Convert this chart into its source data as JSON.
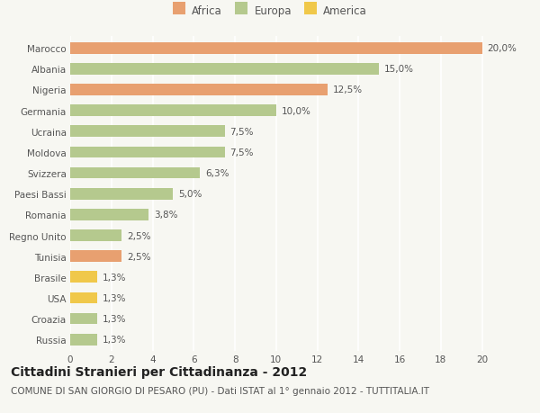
{
  "categories": [
    "Russia",
    "Croazia",
    "USA",
    "Brasile",
    "Tunisia",
    "Regno Unito",
    "Romania",
    "Paesi Bassi",
    "Svizzera",
    "Moldova",
    "Ucraina",
    "Germania",
    "Nigeria",
    "Albania",
    "Marocco"
  ],
  "values": [
    1.3,
    1.3,
    1.3,
    1.3,
    2.5,
    2.5,
    3.8,
    5.0,
    6.3,
    7.5,
    7.5,
    10.0,
    12.5,
    15.0,
    20.0
  ],
  "labels": [
    "1,3%",
    "1,3%",
    "1,3%",
    "1,3%",
    "2,5%",
    "2,5%",
    "3,8%",
    "5,0%",
    "6,3%",
    "7,5%",
    "7,5%",
    "10,0%",
    "12,5%",
    "15,0%",
    "20,0%"
  ],
  "colors": [
    "#b5c98e",
    "#b5c98e",
    "#f0c84a",
    "#f0c84a",
    "#e8a070",
    "#b5c98e",
    "#b5c98e",
    "#b5c98e",
    "#b5c98e",
    "#b5c98e",
    "#b5c98e",
    "#b5c98e",
    "#e8a070",
    "#b5c98e",
    "#e8a070"
  ],
  "africa_color": "#e8a070",
  "europa_color": "#b5c98e",
  "america_color": "#f0c84a",
  "background_color": "#f7f7f2",
  "title": "Cittadini Stranieri per Cittadinanza - 2012",
  "subtitle": "COMUNE DI SAN GIORGIO DI PESARO (PU) - Dati ISTAT al 1° gennaio 2012 - TUTTITALIA.IT",
  "xlim": [
    0,
    21.5
  ],
  "xticks": [
    0,
    2,
    4,
    6,
    8,
    10,
    12,
    14,
    16,
    18,
    20
  ],
  "title_fontsize": 10,
  "subtitle_fontsize": 7.5,
  "label_fontsize": 7.5,
  "tick_fontsize": 7.5,
  "legend_fontsize": 8.5,
  "bar_height": 0.55
}
